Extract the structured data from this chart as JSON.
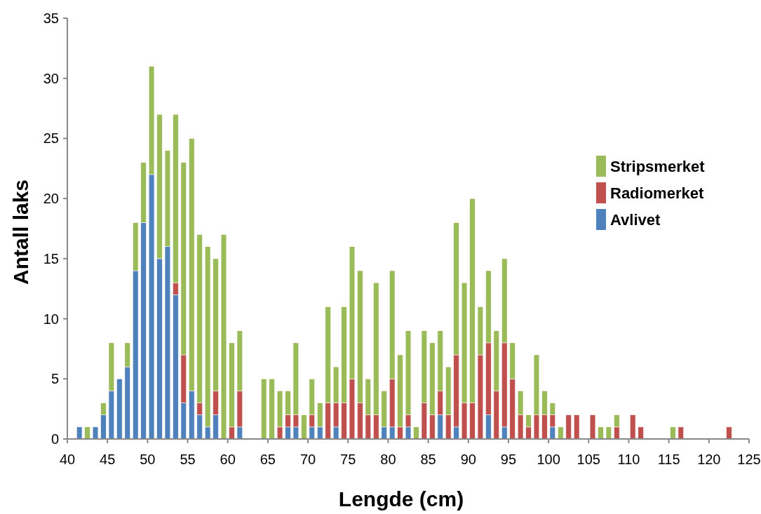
{
  "chart_data": {
    "type": "bar",
    "stacked": true,
    "xlabel": "Lengde (cm)",
    "ylabel": "Antall laks",
    "x": [
      41.5,
      42.5,
      43.5,
      44.5,
      45.5,
      46.5,
      47.5,
      48.5,
      49.5,
      50.5,
      51.5,
      52.5,
      53.5,
      54.5,
      55.5,
      56.5,
      57.5,
      58.5,
      59.5,
      60.5,
      61.5,
      64.5,
      65.5,
      66.5,
      67.5,
      68.5,
      69.5,
      70.5,
      71.5,
      72.5,
      73.5,
      74.5,
      75.5,
      76.5,
      77.5,
      78.5,
      79.5,
      80.5,
      81.5,
      82.5,
      83.5,
      84.5,
      85.5,
      86.5,
      87.5,
      88.5,
      89.5,
      90.5,
      91.5,
      92.5,
      93.5,
      94.5,
      95.5,
      96.5,
      97.5,
      98.5,
      99.5,
      100.5,
      101.5,
      102.5,
      103.5,
      105.5,
      106.5,
      107.5,
      108.5,
      110.5,
      111.5,
      115.5,
      116.5,
      122.5
    ],
    "series": [
      {
        "name": "Avlivet",
        "color": "#4f81bd",
        "values": [
          1,
          0,
          1,
          2,
          4,
          5,
          6,
          14,
          18,
          22,
          15,
          16,
          12,
          3,
          4,
          2,
          1,
          2,
          0,
          0,
          1,
          0,
          0,
          0,
          1,
          1,
          0,
          1,
          1,
          0,
          1,
          0,
          0,
          0,
          0,
          0,
          1,
          1,
          0,
          1,
          0,
          0,
          0,
          2,
          0,
          1,
          0,
          0,
          0,
          2,
          0,
          1,
          0,
          0,
          0,
          0,
          0,
          1,
          0,
          0,
          0,
          0,
          0,
          0,
          0,
          0,
          0,
          0,
          0,
          0
        ]
      },
      {
        "name": "Radiomerket",
        "color": "#c0504d",
        "values": [
          0,
          0,
          0,
          0,
          0,
          0,
          0,
          0,
          0,
          0,
          0,
          0,
          1,
          4,
          0,
          1,
          0,
          2,
          0,
          1,
          3,
          0,
          0,
          1,
          1,
          1,
          0,
          1,
          0,
          3,
          2,
          3,
          5,
          3,
          2,
          2,
          0,
          4,
          1,
          1,
          0,
          3,
          2,
          2,
          2,
          6,
          3,
          3,
          7,
          6,
          4,
          7,
          5,
          2,
          1,
          2,
          2,
          1,
          0,
          2,
          2,
          2,
          0,
          0,
          1,
          2,
          1,
          0,
          1,
          1
        ]
      },
      {
        "name": "Stripsmerket",
        "color": "#9bbb59",
        "values": [
          0,
          1,
          0,
          1,
          4,
          0,
          2,
          4,
          5,
          9,
          12,
          8,
          14,
          16,
          21,
          14,
          15,
          11,
          17,
          7,
          5,
          5,
          5,
          3,
          2,
          6,
          2,
          3,
          2,
          8,
          3,
          8,
          11,
          11,
          3,
          11,
          3,
          9,
          6,
          7,
          1,
          6,
          6,
          5,
          4,
          11,
          10,
          17,
          4,
          6,
          5,
          7,
          3,
          2,
          1,
          5,
          2,
          1,
          1,
          0,
          0,
          0,
          1,
          1,
          1,
          0,
          0,
          1,
          0,
          0
        ]
      }
    ],
    "xlim": [
      40,
      125
    ],
    "xticks": [
      40,
      45,
      50,
      55,
      60,
      65,
      70,
      75,
      80,
      85,
      90,
      95,
      100,
      105,
      110,
      115,
      120,
      125
    ],
    "ylim": [
      0,
      35
    ],
    "yticks": [
      0,
      5,
      10,
      15,
      20,
      25,
      30,
      35
    ],
    "legend": "right"
  }
}
